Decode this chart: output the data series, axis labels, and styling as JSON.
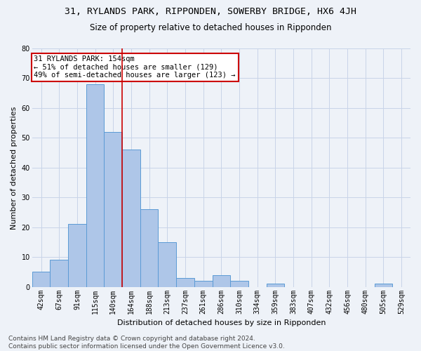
{
  "title": "31, RYLANDS PARK, RIPPONDEN, SOWERBY BRIDGE, HX6 4JH",
  "subtitle": "Size of property relative to detached houses in Ripponden",
  "xlabel": "Distribution of detached houses by size in Ripponden",
  "ylabel": "Number of detached properties",
  "footer_line1": "Contains HM Land Registry data © Crown copyright and database right 2024.",
  "footer_line2": "Contains public sector information licensed under the Open Government Licence v3.0.",
  "categories": [
    "42sqm",
    "67sqm",
    "91sqm",
    "115sqm",
    "140sqm",
    "164sqm",
    "188sqm",
    "213sqm",
    "237sqm",
    "261sqm",
    "286sqm",
    "310sqm",
    "334sqm",
    "359sqm",
    "383sqm",
    "407sqm",
    "432sqm",
    "456sqm",
    "480sqm",
    "505sqm",
    "529sqm"
  ],
  "values": [
    5,
    9,
    21,
    68,
    52,
    46,
    26,
    15,
    3,
    2,
    4,
    2,
    0,
    1,
    0,
    0,
    0,
    0,
    0,
    1,
    0
  ],
  "bar_color": "#aec6e8",
  "bar_edge_color": "#5b9bd5",
  "property_line_x": 4.5,
  "annotation_text": "31 RYLANDS PARK: 154sqm\n← 51% of detached houses are smaller (129)\n49% of semi-detached houses are larger (123) →",
  "annotation_box_color": "#ffffff",
  "annotation_box_edge_color": "#cc0000",
  "vline_color": "#cc0000",
  "ylim": [
    0,
    80
  ],
  "yticks": [
    0,
    10,
    20,
    30,
    40,
    50,
    60,
    70,
    80
  ],
  "grid_color": "#c8d4e8",
  "bg_color": "#eef2f8",
  "title_fontsize": 9.5,
  "subtitle_fontsize": 8.5,
  "axis_label_fontsize": 8,
  "tick_fontsize": 7,
  "annotation_fontsize": 7.5,
  "footer_fontsize": 6.5
}
